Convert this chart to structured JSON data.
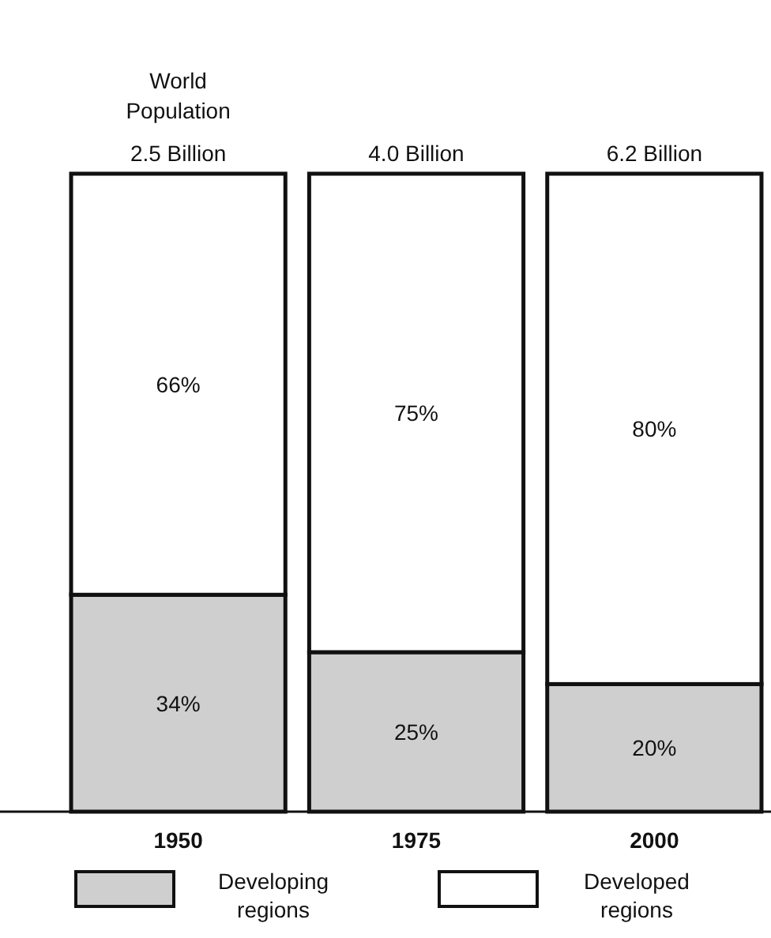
{
  "chart_data": {
    "type": "bar",
    "stacked": true,
    "categories": [
      "1950",
      "1975",
      "2000"
    ],
    "series": [
      {
        "name": "Developing regions",
        "color": "#cfcfcf",
        "values": [
          34,
          25,
          20
        ],
        "value_labels": [
          "34%",
          "25%",
          "20%"
        ]
      },
      {
        "name": "Developed regions",
        "color": "#ffffff",
        "values": [
          66,
          75,
          80
        ],
        "value_labels": [
          "66%",
          "75%",
          "80%"
        ]
      }
    ],
    "annotations": [
      "World Population",
      "2.5 Billion",
      "4.0 Billion",
      "6.2 Billion"
    ],
    "legend": "bottom"
  }
}
